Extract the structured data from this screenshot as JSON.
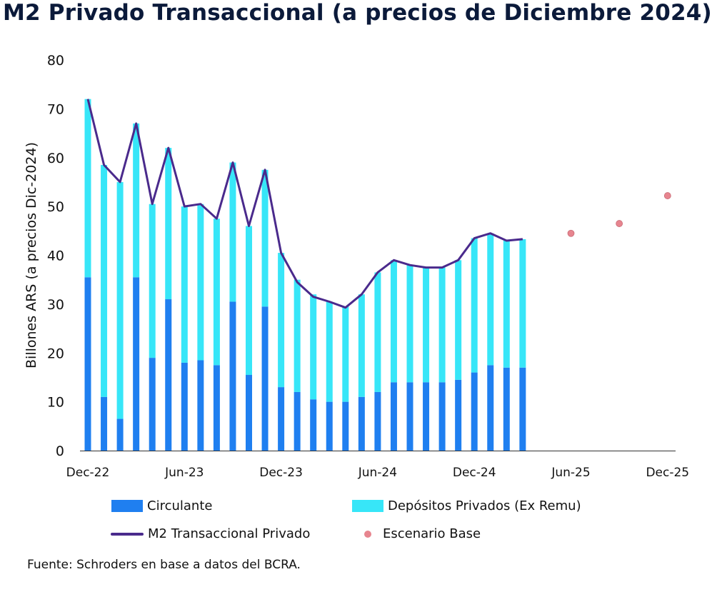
{
  "title": "M2 Privado Transaccional (a precios de Diciembre 2024)",
  "source": "Fuente: Schroders en base a datos del BCRA.",
  "colors": {
    "circulante": "#1f7ff0",
    "depositos": "#37e6f8",
    "m2line": "#4a2a8c",
    "escenario": "#e7858f",
    "axis": "#333333"
  },
  "legend": {
    "circulante": "Circulante",
    "depositos": "Depósitos Privados (Ex Remu)",
    "m2": "M2 Transaccional Privado",
    "escenario": "Escenario Base"
  },
  "chart_data": {
    "type": "bar",
    "ylabel": "Billones ARS (a precios Dic-2024)",
    "ylim": [
      0,
      80
    ],
    "yticks": [
      0,
      10,
      20,
      30,
      40,
      50,
      60,
      70,
      80
    ],
    "x_tick_labels": [
      "Dec-22",
      "Jun-23",
      "Dec-23",
      "Jun-24",
      "Dec-24",
      "Jun-25",
      "Dec-25"
    ],
    "categories": [
      "Dec-22",
      "Jan-23",
      "Feb-23",
      "Mar-23",
      "Apr-23",
      "May-23",
      "Jun-23",
      "Jul-23",
      "Aug-23",
      "Sep-23",
      "Oct-23",
      "Nov-23",
      "Dec-23",
      "Jan-24",
      "Feb-24",
      "Mar-24",
      "Apr-24",
      "May-24",
      "Jun-24",
      "Jul-24",
      "Aug-24",
      "Sep-24",
      "Oct-24",
      "Nov-24",
      "Dec-24",
      "Jan-25",
      "Feb-25",
      "Mar-25"
    ],
    "series": [
      {
        "name": "Circulante",
        "type": "bar-stacked",
        "values": [
          35.5,
          11,
          6.5,
          35.5,
          19,
          31,
          18,
          18.5,
          17.5,
          30.5,
          15.5,
          29.5,
          13,
          12,
          10.5,
          10,
          10,
          11,
          12,
          14,
          14,
          14,
          14,
          14.5,
          16,
          17.5,
          17,
          17
        ]
      },
      {
        "name": "Depósitos Privados (Ex Remu)",
        "type": "bar-stacked",
        "values": [
          36.5,
          47.5,
          48.5,
          31.5,
          31.5,
          31,
          32,
          32,
          30,
          28.5,
          30.5,
          28,
          27.5,
          23,
          21.5,
          20.5,
          19.5,
          21,
          24.5,
          25,
          24,
          23.5,
          23.5,
          24.5,
          27.5,
          27,
          26,
          26.3
        ]
      },
      {
        "name": "M2 Transaccional Privado",
        "type": "line",
        "values": [
          72,
          58.5,
          55,
          67,
          50.5,
          62,
          50,
          50.5,
          47.5,
          59,
          46,
          57.5,
          40.5,
          34.5,
          31.5,
          30.5,
          29.3,
          32,
          36.5,
          39,
          38,
          37.5,
          37.5,
          39,
          43.5,
          44.5,
          43,
          43.3
        ]
      },
      {
        "name": "Escenario Base",
        "type": "scatter",
        "x": [
          "Jun-25",
          "Sep-25",
          "Dec-25"
        ],
        "values": [
          44.5,
          46.5,
          52.2
        ]
      }
    ],
    "grid": false,
    "legend_position": "bottom"
  }
}
